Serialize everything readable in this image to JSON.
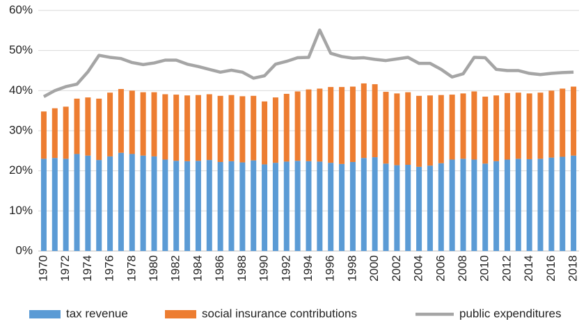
{
  "chart_data": {
    "type": "stacked-bar-line",
    "categories": [
      "1970",
      null,
      "1972",
      null,
      "1974",
      null,
      "1976",
      null,
      "1978",
      null,
      "1980",
      null,
      "1982",
      null,
      "1984",
      null,
      "1986",
      null,
      "1988",
      null,
      "1990",
      null,
      "1992",
      null,
      "1994",
      null,
      "1996",
      null,
      "1998",
      null,
      "2000",
      null,
      "2002",
      null,
      "2004",
      null,
      "2006",
      null,
      "2008",
      null,
      "2010",
      null,
      "2012",
      null,
      "2014",
      null,
      "2016",
      null,
      "2018"
    ],
    "series": [
      {
        "name": "tax revenue",
        "kind": "bar",
        "color": "#5b9bd5",
        "values": [
          23,
          23.2,
          23,
          24.2,
          23.8,
          22.7,
          23.6,
          24.5,
          24.2,
          23.8,
          23.6,
          22.8,
          22.5,
          22.4,
          22.5,
          22.7,
          22.2,
          22.4,
          22.1,
          22.6,
          21.6,
          22,
          22.3,
          22.5,
          22.4,
          22.3,
          22,
          21.7,
          22.2,
          23.2,
          23.4,
          21.8,
          21.4,
          21.5,
          21,
          21.3,
          21.9,
          22.8,
          23,
          22.8,
          21.8,
          22.4,
          22.8,
          23,
          22.9,
          23,
          23.3,
          23.5,
          23.8
        ]
      },
      {
        "name": "social insurance contributions",
        "kind": "bar",
        "color": "#ed7d31",
        "values": [
          11.8,
          12.4,
          13,
          13.8,
          14.5,
          15.3,
          15.9,
          15.9,
          15.8,
          15.8,
          16,
          16.3,
          16.5,
          16.4,
          16.4,
          16.4,
          16.5,
          16.5,
          16.5,
          16.1,
          15.7,
          16.3,
          16.9,
          17.3,
          17.9,
          18.2,
          18.9,
          19.2,
          18.8,
          18.6,
          18.2,
          17.9,
          17.9,
          18.1,
          17.7,
          17.5,
          17,
          16.2,
          16.3,
          17,
          16.7,
          16.4,
          16.6,
          16.5,
          16.4,
          16.5,
          16.7,
          17,
          17.2
        ]
      },
      {
        "name": "public expenditures",
        "kind": "line",
        "color": "#a5a5a5",
        "values": [
          38.5,
          40,
          41,
          41.6,
          44.7,
          48.8,
          48.3,
          48,
          47,
          46.5,
          46.9,
          47.6,
          47.6,
          46.6,
          46,
          45.3,
          44.6,
          45.1,
          44.6,
          43.1,
          43.7,
          46.6,
          47.3,
          48.2,
          48.3,
          55.1,
          49.3,
          48.5,
          48.1,
          48.2,
          47.8,
          47.5,
          47.9,
          48.3,
          46.8,
          46.8,
          45.3,
          43.4,
          44.2,
          48.3,
          48.2,
          45.3,
          45,
          45,
          44.3,
          44,
          44.3,
          44.5,
          44.6
        ]
      }
    ],
    "ylim": [
      0,
      60
    ],
    "yticks": [
      {
        "value": 0,
        "label": "0%"
      },
      {
        "value": 10,
        "label": "10%"
      },
      {
        "value": 20,
        "label": "20%"
      },
      {
        "value": 30,
        "label": "30%"
      },
      {
        "value": 40,
        "label": "40%"
      },
      {
        "value": 50,
        "label": "50%"
      },
      {
        "value": 60,
        "label": "60%"
      }
    ],
    "grid": true,
    "legend": "bottom"
  }
}
